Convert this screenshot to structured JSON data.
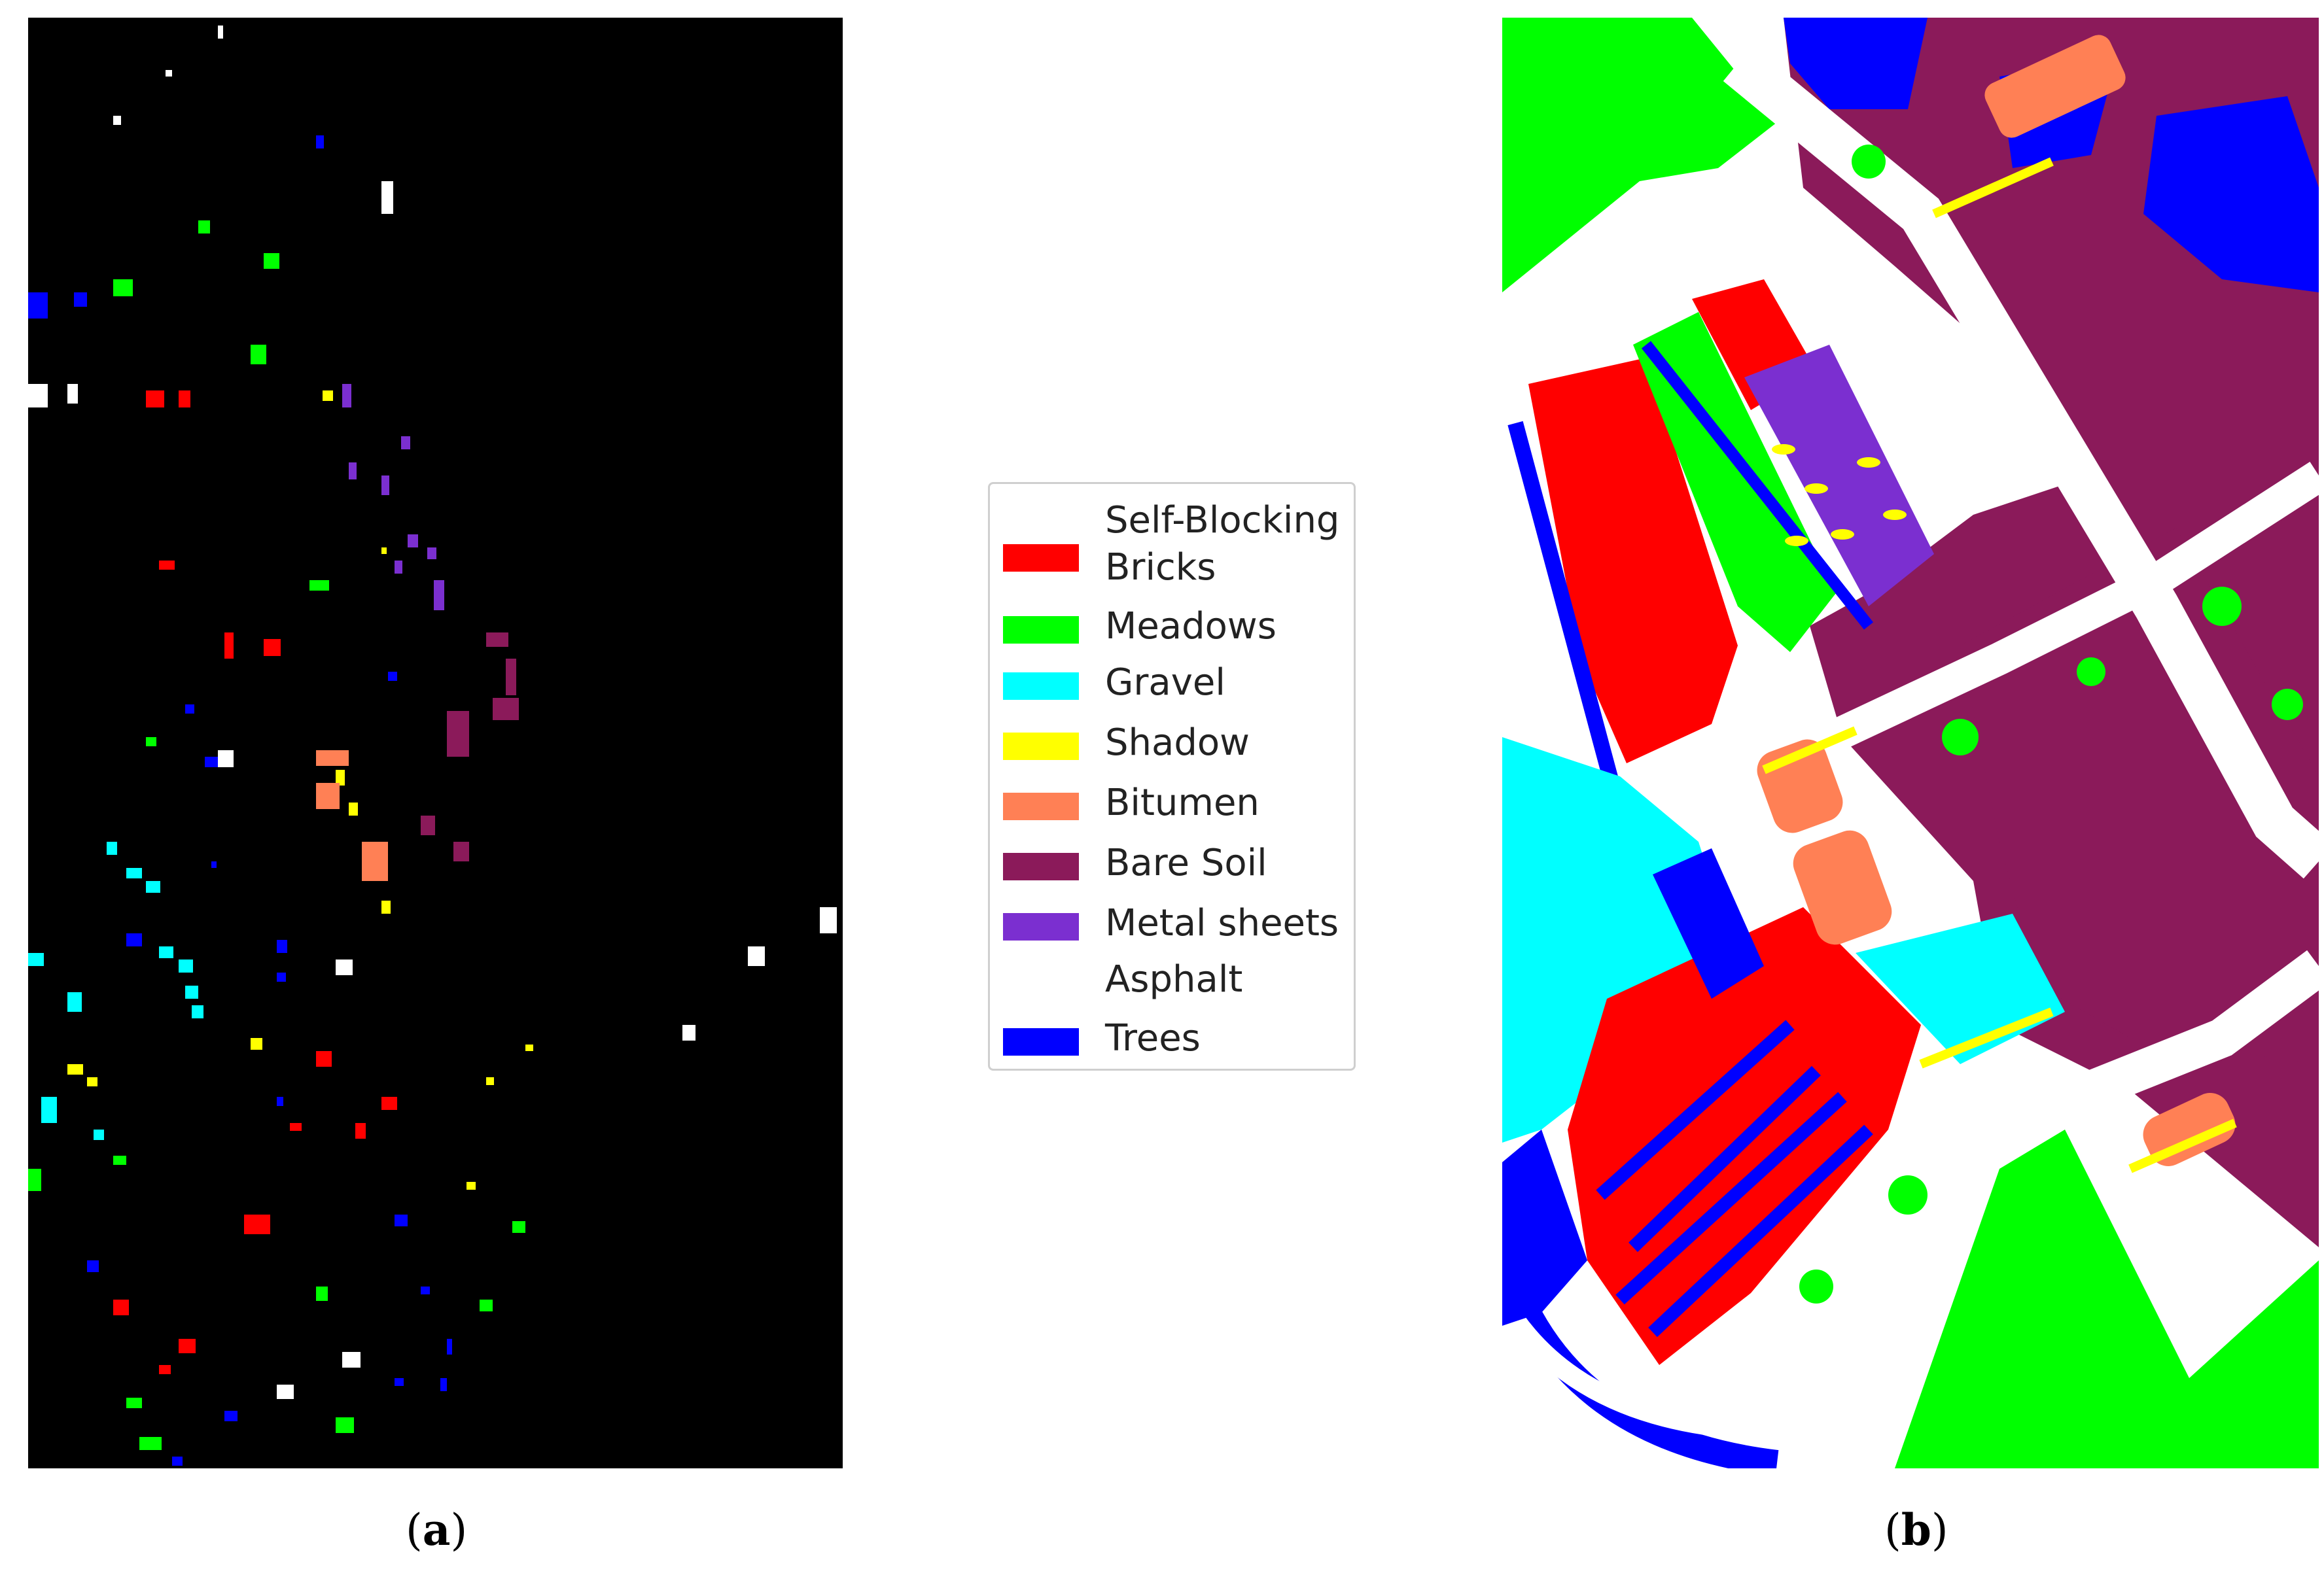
{
  "captions": {
    "a": "a",
    "b": "b"
  },
  "legend": {
    "items": [
      {
        "label": "Self-Blocking\nBricks",
        "color": "#ff0000"
      },
      {
        "label": "Meadows",
        "color": "#00ff00"
      },
      {
        "label": "Gravel",
        "color": "#00ffff"
      },
      {
        "label": "Shadow",
        "color": "#ffff00"
      },
      {
        "label": "Bitumen",
        "color": "#ff8055"
      },
      {
        "label": "Bare Soil",
        "color": "#8b1a5a"
      },
      {
        "label": "Metal sheets",
        "color": "#7b2fd0"
      },
      {
        "label": "Asphalt",
        "color": "#ffffff"
      },
      {
        "label": "Trees",
        "color": "#0000ff"
      }
    ]
  }
}
